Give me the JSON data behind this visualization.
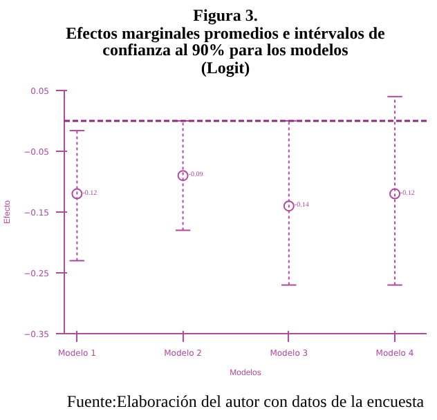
{
  "chart_data": {
    "type": "scatter",
    "title": "Figura 3.\nEfectos marginales promedios e intérvalos de\nconfianza al 90% para los modelos\n(Logit)",
    "xlabel": "Modelos",
    "ylabel": "Efecto",
    "categories": [
      "Modelo 1",
      "Modelo 2",
      "Modelo 3",
      "Modelo 4"
    ],
    "values": [
      -0.12,
      -0.09,
      -0.14,
      -0.12
    ],
    "errors": [
      [
        -0.23,
        -0.016
      ],
      [
        -0.18,
        0.0
      ],
      [
        -0.27,
        0.0
      ],
      [
        -0.27,
        0.04
      ]
    ],
    "value_labels": [
      "-0.12",
      "-0.09",
      "-0.14",
      "-0.12"
    ],
    "color": "#b04aa0",
    "marker": "circle",
    "ylim": [
      -0.35,
      0.05
    ],
    "yticks": [
      0.05,
      -0.05,
      -0.15,
      -0.25,
      -0.35
    ],
    "ref_lines": [
      {
        "axis": "y",
        "value": 0,
        "color": "#8e2a7e",
        "line_style": "dashed"
      }
    ],
    "grid": false,
    "annotations": [
      "Fuente:Elaboración del autor con datos de la encuesta"
    ]
  }
}
